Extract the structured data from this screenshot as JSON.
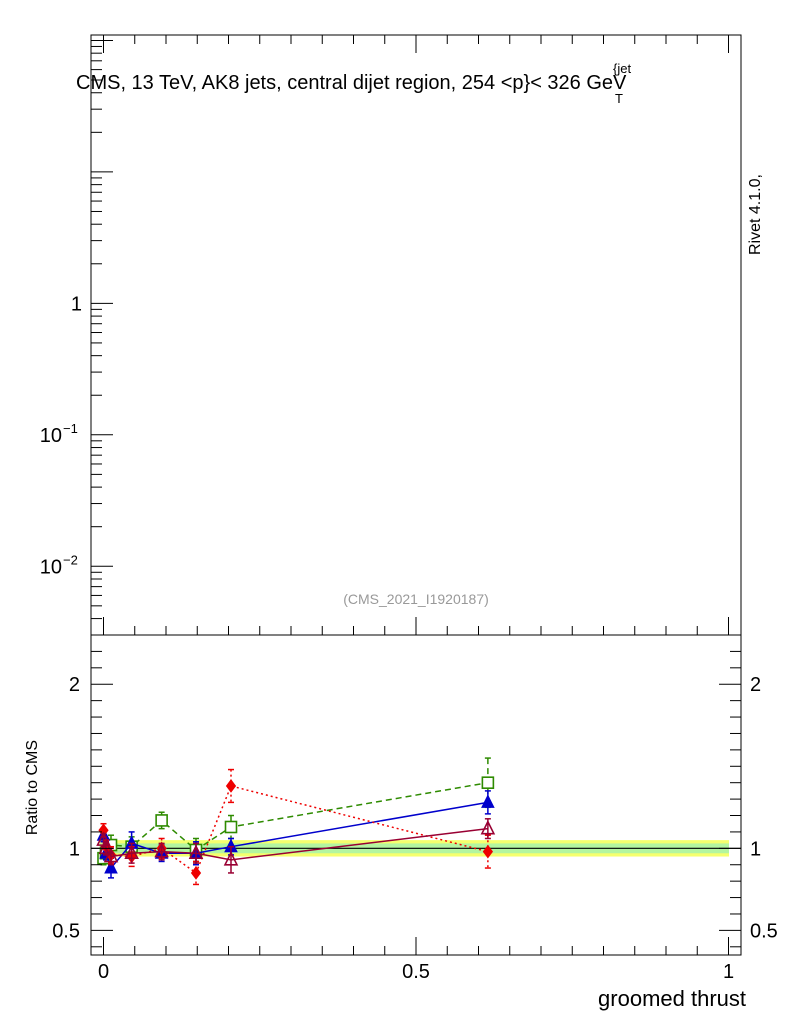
{
  "chart_data": {
    "type": "scatter",
    "title_parts": {
      "prefix": "CMS, 13 TeV, AK8 jets, central dijet region, 254 <",
      "p": "p",
      "sup": "{jet",
      "sub": "T",
      "suffix": "}< 326 GeV"
    },
    "side_label": "Rivet 4.1.0,",
    "analysis_label": "(CMS_2021_I1920187)",
    "xlabel": "groomed thrust",
    "ylabel_ratio": "Ratio to CMS",
    "xlim": [
      -0.02,
      1.02
    ],
    "x_ticks": [
      "0",
      "0.5",
      "1"
    ],
    "upper_panel": {
      "yscale": "log",
      "ylim": [
        0.003,
        110
      ],
      "y_ticks": [
        {
          "value": 1,
          "label": "1"
        },
        {
          "value": 0.1,
          "base": "10",
          "exp": "−1"
        },
        {
          "value": 0.01,
          "base": "10",
          "exp": "−2"
        }
      ]
    },
    "ratio_panel": {
      "ylim": [
        0.35,
        2.3
      ],
      "y_ticks": [
        "2",
        "1",
        "0.5"
      ],
      "reference_line": 1.0,
      "band_outer": [
        0.95,
        1.05
      ],
      "band_inner": [
        0.97,
        1.03
      ]
    },
    "series": [
      {
        "name": "green-open-square",
        "color": "#2e8b00",
        "marker": "square-open",
        "line": "dashed",
        "x": [
          0.0,
          0.004,
          0.012,
          0.045,
          0.093,
          0.148,
          0.204,
          0.615
        ],
        "y": [
          0.94,
          0.97,
          1.02,
          1.01,
          1.17,
          0.99,
          1.13,
          1.4
        ],
        "err": [
          0.04,
          0.04,
          0.06,
          0.06,
          0.05,
          0.07,
          0.07,
          0.15
        ]
      },
      {
        "name": "blue-filled-triangle",
        "color": "#0000cc",
        "marker": "triangle-filled",
        "line": "solid",
        "x": [
          0.0,
          0.004,
          0.012,
          0.045,
          0.093,
          0.148,
          0.204,
          0.615
        ],
        "y": [
          1.08,
          0.97,
          0.88,
          1.03,
          0.97,
          0.97,
          1.01,
          1.28
        ],
        "err": [
          0.04,
          0.04,
          0.06,
          0.07,
          0.05,
          0.07,
          0.05,
          0.07
        ]
      },
      {
        "name": "red-filled-diamond",
        "color": "#ee0000",
        "marker": "diamond-filled",
        "line": "dotted",
        "x": [
          0.0,
          0.004,
          0.012,
          0.045,
          0.093,
          0.148,
          0.204,
          0.615
        ],
        "y": [
          1.11,
          1.01,
          0.96,
          0.95,
          1.0,
          0.85,
          1.38,
          0.98
        ],
        "err": [
          0.04,
          0.04,
          0.05,
          0.06,
          0.06,
          0.07,
          0.1,
          0.1
        ]
      },
      {
        "name": "darkred-open-triangle",
        "color": "#990033",
        "marker": "triangle-open",
        "line": "solid",
        "x": [
          0.0,
          0.004,
          0.012,
          0.045,
          0.093,
          0.148,
          0.204,
          0.615
        ],
        "y": [
          1.05,
          1.0,
          0.95,
          0.97,
          0.98,
          0.97,
          0.93,
          1.12
        ],
        "err": [
          0.04,
          0.04,
          0.05,
          0.06,
          0.05,
          0.06,
          0.08,
          0.06
        ]
      }
    ]
  }
}
